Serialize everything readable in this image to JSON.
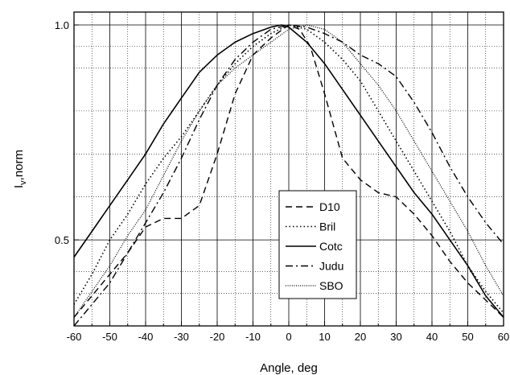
{
  "chart_data": {
    "type": "line",
    "xlabel": "Angle, deg",
    "ylabel_main": "I",
    "ylabel_sub": "v",
    "ylabel_rest": ",norm",
    "xlim": [
      -60,
      60
    ],
    "ylim": [
      0.3,
      1.03
    ],
    "xticks": [
      -60,
      -50,
      -40,
      -30,
      -20,
      -10,
      0,
      10,
      20,
      30,
      40,
      50,
      60
    ],
    "yticks": [
      0.5,
      1.0
    ],
    "ytick_labels": [
      "0.5",
      "1.0"
    ],
    "x_gridlines_every": 5,
    "y_gridlines": [
      0.5,
      1.0
    ],
    "y_dotted_gridlines": [
      0.376,
      0.426,
      0.6,
      0.7,
      0.8,
      0.9,
      0.95
    ],
    "legend_position": "bottom-center",
    "series": [
      {
        "name": "D10",
        "dash": "dash",
        "x": [
          -60,
          -55,
          -50,
          -45,
          -40,
          -35,
          -30,
          -25,
          -20,
          -15,
          -10,
          -5,
          0,
          3,
          6,
          10,
          15,
          20,
          25,
          30,
          35,
          40,
          45,
          50,
          55,
          60
        ],
        "y": [
          0.32,
          0.37,
          0.42,
          0.47,
          0.53,
          0.55,
          0.55,
          0.58,
          0.7,
          0.84,
          0.93,
          0.97,
          1.0,
          0.99,
          0.95,
          0.84,
          0.69,
          0.64,
          0.61,
          0.6,
          0.56,
          0.51,
          0.45,
          0.4,
          0.36,
          0.32
        ]
      },
      {
        "name": "Bril",
        "dash": "dot",
        "x": [
          -60,
          -55,
          -50,
          -45,
          -40,
          -35,
          -30,
          -25,
          -20,
          -15,
          -10,
          -5,
          0,
          5,
          10,
          15,
          20,
          25,
          30,
          35,
          40,
          45,
          50,
          55,
          60
        ],
        "y": [
          0.35,
          0.42,
          0.5,
          0.56,
          0.63,
          0.69,
          0.74,
          0.8,
          0.86,
          0.91,
          0.95,
          0.98,
          1.0,
          0.99,
          0.96,
          0.92,
          0.87,
          0.8,
          0.73,
          0.66,
          0.59,
          0.52,
          0.44,
          0.38,
          0.33
        ]
      },
      {
        "name": "Cotc",
        "dash": "solid",
        "x": [
          -60,
          -55,
          -50,
          -45,
          -40,
          -35,
          -30,
          -25,
          -20,
          -15,
          -10,
          -5,
          -2,
          0,
          5,
          10,
          15,
          20,
          25,
          30,
          35,
          40,
          45,
          50,
          55,
          60
        ],
        "y": [
          0.46,
          0.52,
          0.58,
          0.64,
          0.7,
          0.77,
          0.83,
          0.89,
          0.93,
          0.96,
          0.98,
          0.995,
          1.0,
          0.995,
          0.96,
          0.91,
          0.85,
          0.79,
          0.73,
          0.67,
          0.61,
          0.56,
          0.5,
          0.44,
          0.37,
          0.32
        ]
      },
      {
        "name": "Judu",
        "dash": "dashdot",
        "x": [
          -60,
          -55,
          -50,
          -45,
          -40,
          -35,
          -30,
          -25,
          -20,
          -15,
          -10,
          -5,
          0,
          5,
          10,
          15,
          20,
          25,
          30,
          35,
          40,
          45,
          50,
          55,
          60
        ],
        "y": [
          0.3,
          0.35,
          0.4,
          0.47,
          0.54,
          0.61,
          0.69,
          0.78,
          0.86,
          0.92,
          0.96,
          0.99,
          1.0,
          0.995,
          0.98,
          0.96,
          0.93,
          0.91,
          0.88,
          0.82,
          0.75,
          0.67,
          0.6,
          0.54,
          0.49
        ]
      },
      {
        "name": "SBO",
        "dash": "densedot",
        "x": [
          -60,
          -55,
          -50,
          -45,
          -40,
          -35,
          -30,
          -25,
          -20,
          -15,
          -10,
          -5,
          0,
          5,
          10,
          15,
          20,
          25,
          30,
          35,
          40,
          45,
          50,
          55,
          60
        ],
        "y": [
          0.32,
          0.38,
          0.44,
          0.51,
          0.57,
          0.65,
          0.73,
          0.8,
          0.86,
          0.9,
          0.93,
          0.96,
          0.99,
          1.0,
          0.99,
          0.96,
          0.91,
          0.86,
          0.8,
          0.73,
          0.66,
          0.59,
          0.52,
          0.44,
          0.37
        ]
      }
    ]
  }
}
